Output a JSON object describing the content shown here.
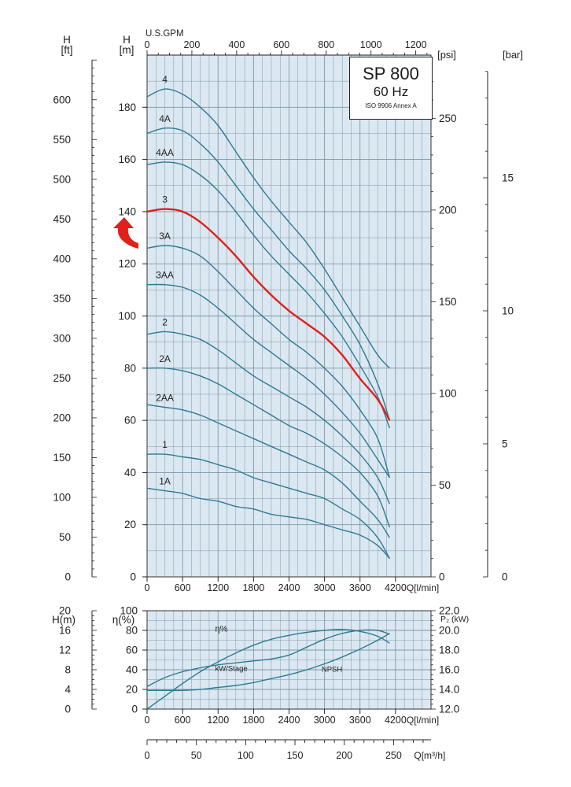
{
  "chart_data": [
    {
      "type": "line",
      "title": "SP 800",
      "subtitle": "60 Hz",
      "note": "ISO 9906 Annex A",
      "x_top_label": "U.S.GPM",
      "x_top_ticks": [
        "0",
        "200",
        "400",
        "600",
        "800",
        "1000",
        "1200"
      ],
      "xlabel": "Q[l/min]",
      "xlim": [
        0,
        4800
      ],
      "x_ticks": [
        "0",
        "600",
        "1200",
        "1800",
        "2400",
        "3000",
        "3600",
        "4200"
      ],
      "ylabel_m": "H\n[m]",
      "ylim": [
        0,
        200
      ],
      "y_ticks_m": [
        "0",
        "20",
        "40",
        "60",
        "80",
        "100",
        "120",
        "140",
        "160",
        "180"
      ],
      "ylabel_ft": "H\n[ft]",
      "y_ticks_ft": [
        "0",
        "50",
        "100",
        "150",
        "200",
        "250",
        "300",
        "350",
        "400",
        "450",
        "500",
        "550",
        "600"
      ],
      "ylabel_psi": "[psi]",
      "y_ticks_psi": [
        "0",
        "50",
        "100",
        "150",
        "200",
        "250"
      ],
      "ylabel_bar": "[bar]",
      "y_ticks_bar": [
        "0",
        "5",
        "10",
        "15"
      ],
      "highlight_color": "#e0201b",
      "curve_color": "#2f7a92",
      "series": [
        {
          "name": "4",
          "x": [
            0,
            300,
            600,
            900,
            1200,
            1500,
            1800,
            2100,
            2400,
            2700,
            3000,
            3300,
            3600,
            3900,
            4100
          ],
          "y": [
            184,
            187,
            185,
            180,
            173,
            163,
            153,
            144,
            136,
            128,
            118,
            107,
            96,
            85,
            80
          ]
        },
        {
          "name": "4A",
          "x": [
            0,
            300,
            600,
            900,
            1200,
            1500,
            1800,
            2100,
            2400,
            2700,
            3000,
            3300,
            3600,
            3900,
            4100
          ],
          "y": [
            170,
            172,
            171,
            166,
            159,
            150,
            141,
            133,
            125,
            118,
            110,
            100,
            89,
            74,
            60
          ]
        },
        {
          "name": "4AA",
          "x": [
            0,
            300,
            600,
            900,
            1200,
            1500,
            1800,
            2100,
            2400,
            2700,
            3000,
            3300,
            3600,
            3900,
            4100
          ],
          "y": [
            158,
            159,
            158,
            154,
            148,
            140,
            131,
            123,
            116,
            109,
            101,
            92,
            81,
            69,
            57
          ]
        },
        {
          "name": "3",
          "highlight": true,
          "x": [
            0,
            300,
            600,
            900,
            1200,
            1500,
            1800,
            2100,
            2400,
            2700,
            3000,
            3300,
            3600,
            3900,
            4100
          ],
          "y": [
            140,
            141,
            140,
            136,
            130,
            123,
            115,
            108,
            102,
            97,
            92,
            85,
            76,
            68,
            60
          ]
        },
        {
          "name": "3A",
          "x": [
            0,
            300,
            600,
            900,
            1200,
            1500,
            1800,
            2100,
            2400,
            2700,
            3000,
            3300,
            3600,
            3900,
            4100
          ],
          "y": [
            126,
            127,
            126,
            123,
            117,
            110,
            103,
            97,
            91,
            86,
            80,
            73,
            64,
            53,
            38
          ]
        },
        {
          "name": "3AA",
          "x": [
            0,
            300,
            600,
            900,
            1200,
            1500,
            1800,
            2100,
            2400,
            2700,
            3000,
            3300,
            3600,
            3900,
            4100
          ],
          "y": [
            112,
            112,
            111,
            108,
            103,
            97,
            91,
            86,
            81,
            76,
            70,
            63,
            55,
            45,
            38
          ]
        },
        {
          "name": "2",
          "x": [
            0,
            300,
            600,
            900,
            1200,
            1500,
            1800,
            2100,
            2400,
            2700,
            3000,
            3300,
            3600,
            3900,
            4100
          ],
          "y": [
            93,
            94,
            93,
            91,
            87,
            82,
            77,
            73,
            69,
            65,
            60,
            54,
            47,
            38,
            28
          ]
        },
        {
          "name": "2A",
          "x": [
            0,
            300,
            600,
            900,
            1200,
            1500,
            1800,
            2100,
            2400,
            2700,
            3000,
            3300,
            3600,
            3900,
            4100
          ],
          "y": [
            80,
            80,
            79,
            77,
            74,
            70,
            66,
            62,
            58,
            55,
            51,
            46,
            40,
            31,
            19
          ]
        },
        {
          "name": "2AA",
          "x": [
            0,
            300,
            600,
            900,
            1200,
            1500,
            1800,
            2100,
            2400,
            2700,
            3000,
            3300,
            3600,
            3900,
            4100
          ],
          "y": [
            66,
            65,
            64,
            62,
            59,
            56,
            53,
            50,
            47,
            44,
            41,
            36,
            29,
            22,
            15
          ]
        },
        {
          "name": "1",
          "x": [
            0,
            300,
            600,
            900,
            1200,
            1500,
            1800,
            2100,
            2400,
            2700,
            3000,
            3300,
            3600,
            3900,
            4100
          ],
          "y": [
            47,
            47,
            46,
            45,
            43,
            41,
            38,
            36,
            34,
            32,
            30,
            26,
            22,
            15,
            7
          ]
        },
        {
          "name": "1A",
          "x": [
            0,
            300,
            600,
            900,
            1200,
            1500,
            1800,
            2100,
            2400,
            2700,
            3000,
            3300,
            3600,
            3900,
            4100
          ],
          "y": [
            34,
            33,
            32,
            30,
            29,
            27,
            26,
            24,
            23,
            22,
            20,
            18,
            16,
            12,
            7
          ]
        }
      ]
    },
    {
      "type": "line",
      "xlabel": "Q[l/min]",
      "xlim": [
        0,
        4800
      ],
      "x_ticks": [
        "0",
        "600",
        "1200",
        "1800",
        "2400",
        "3000",
        "3600",
        "4200"
      ],
      "ylabel_h": "H(m)",
      "y_ticks_h": [
        "0",
        "4",
        "8",
        "12",
        "16",
        "20"
      ],
      "ylabel_eta": "η(%)",
      "y_ticks_eta": [
        "0",
        "20",
        "40",
        "60",
        "80",
        "100"
      ],
      "ylim_eta": [
        0,
        100
      ],
      "ylabel_p2": "P₂ (kW)",
      "y_ticks_p2": [
        "12.0",
        "14.0",
        "16.0",
        "18.0",
        "20.0",
        "22.0"
      ],
      "series": [
        {
          "name": "η%",
          "x": [
            0,
            300,
            600,
            900,
            1200,
            1500,
            1800,
            2100,
            2400,
            2700,
            3000,
            3300,
            3600,
            3900,
            4100
          ],
          "y": [
            0,
            13,
            26,
            38,
            48,
            57,
            65,
            71,
            75,
            78,
            80,
            81,
            79,
            74,
            67
          ]
        },
        {
          "name": "kW/Stage",
          "x": [
            0,
            300,
            600,
            900,
            1200,
            1500,
            1800,
            2100,
            2400,
            2700,
            3000,
            3300,
            3600,
            3900,
            4100
          ],
          "y": [
            23,
            32,
            38,
            42,
            45,
            47,
            49,
            51,
            55,
            63,
            71,
            77,
            80,
            80,
            76
          ]
        },
        {
          "name": "NPSH",
          "x": [
            0,
            300,
            600,
            900,
            1200,
            1500,
            1800,
            2100,
            2400,
            2700,
            3000,
            3300,
            3600,
            3900,
            4100
          ],
          "y": [
            19,
            19,
            19,
            20,
            22,
            24,
            27,
            31,
            35,
            40,
            46,
            53,
            61,
            70,
            77
          ]
        }
      ]
    },
    {
      "type": "axis",
      "xlabel": "Q[m³/h]",
      "xlim": [
        0,
        288
      ],
      "x_ticks": [
        "0",
        "50",
        "100",
        "150",
        "200",
        "250"
      ]
    }
  ]
}
